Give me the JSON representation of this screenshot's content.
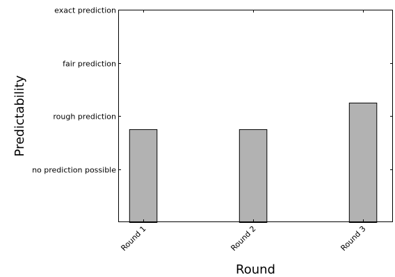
{
  "chart_data": {
    "type": "bar",
    "title": "",
    "xlabel": "Round",
    "ylabel": "Predictability",
    "categories": [
      "Round 1",
      "Round 2",
      "Round 3"
    ],
    "values": [
      1.75,
      1.75,
      2.25
    ],
    "ylim": [
      0,
      4
    ],
    "xlim": [
      -0.1,
      2.4
    ],
    "y_ticks": [
      {
        "value": 1,
        "label": "no prediction possible"
      },
      {
        "value": 2,
        "label": "rough prediction"
      },
      {
        "value": 3,
        "label": "fair prediction"
      },
      {
        "value": 4,
        "label": "exact prediction"
      }
    ],
    "grid": false,
    "legend": "none",
    "colors": {
      "bar_fill": "#b2b2b2",
      "bar_stroke": "#000000",
      "axis": "#000000"
    }
  }
}
